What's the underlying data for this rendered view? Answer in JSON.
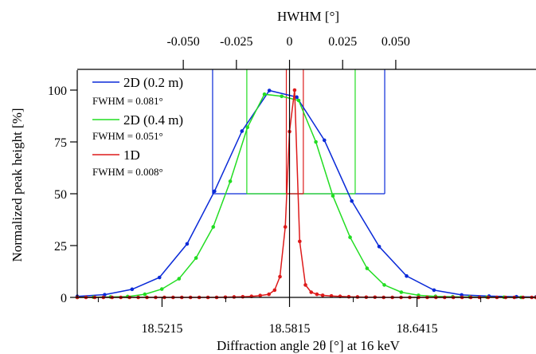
{
  "chart_data": {
    "type": "line",
    "xlabel": "Diffraction angle 2θ [°] at 16 keV",
    "ylabel": "Normalized peak height [%]",
    "top_axis_label": "HWHM [°]",
    "xlim": [
      18.4816,
      18.6975
    ],
    "ylim": [
      0,
      110
    ],
    "x_ticks": [
      18.5215,
      18.5815,
      18.6415
    ],
    "x_tick_labels": [
      "18.5215",
      "18.5815",
      "18.6415"
    ],
    "y_ticks": [
      0,
      25,
      50,
      75,
      100
    ],
    "y_tick_labels": [
      "0",
      "25",
      "50",
      "75",
      "100"
    ],
    "top_axis_center": 18.5815,
    "top_ticks": [
      -0.05,
      -0.025,
      0,
      0.025,
      0.05
    ],
    "top_tick_labels": [
      "-0.050",
      "-0.025",
      "0",
      "0.025",
      "0.050"
    ],
    "legend_position": "top-left",
    "series": [
      {
        "name": "2D (0.2 m)",
        "fwhm_label": "FWHM = 0.081°",
        "color": "#0a2ad8",
        "x": [
          18.4816,
          18.4945,
          18.5074,
          18.5203,
          18.5333,
          18.5462,
          18.5591,
          18.572,
          18.5849,
          18.5979,
          18.6108,
          18.6237,
          18.6366,
          18.6495,
          18.6625,
          18.6754,
          18.6883,
          18.6975
        ],
        "y": [
          0.5,
          1.3,
          3.9,
          9.6,
          25.8,
          51.2,
          80.2,
          99.8,
          96.6,
          75.8,
          46.5,
          24.5,
          10.3,
          3.5,
          1.2,
          0.6,
          0.3,
          0.2
        ]
      },
      {
        "name": "2D (0.4 m)",
        "fwhm_label": "FWHM = 0.051°",
        "color": "#22dd22",
        "x": [
          18.4816,
          18.4892,
          18.4973,
          18.5053,
          18.5134,
          18.5214,
          18.5295,
          18.5375,
          18.5456,
          18.5536,
          18.5617,
          18.5697,
          18.5778,
          18.5858,
          18.5939,
          18.6019,
          18.61,
          18.618,
          18.6261,
          18.6341,
          18.6422,
          18.6502,
          18.6583,
          18.6663,
          18.6744,
          18.6824,
          18.6905,
          18.6975
        ],
        "y": [
          0,
          0.1,
          0.2,
          0.4,
          1.5,
          4.0,
          9.0,
          19.0,
          34.0,
          56.0,
          82.0,
          98.0,
          97.0,
          95.0,
          75.0,
          49.0,
          29.0,
          14.0,
          6.0,
          2.5,
          1.0,
          0.5,
          0.3,
          0.2,
          0.1,
          0.1,
          0,
          0
        ]
      },
      {
        "name": "1D",
        "fwhm_label": "FWHM = 0.008°",
        "color": "#dd1a1a",
        "x": [
          18.4816,
          18.4857,
          18.4898,
          18.4939,
          18.498,
          18.5021,
          18.5062,
          18.5103,
          18.5144,
          18.5185,
          18.5226,
          18.5267,
          18.5308,
          18.5349,
          18.539,
          18.5431,
          18.5472,
          18.5513,
          18.5554,
          18.5595,
          18.5636,
          18.5677,
          18.5718,
          18.5745,
          18.577,
          18.5795,
          18.5815,
          18.5839,
          18.5863,
          18.589,
          18.5917,
          18.5944,
          18.5971,
          18.6012,
          18.6053,
          18.6094,
          18.6135,
          18.6176,
          18.6217,
          18.6258,
          18.6299,
          18.634,
          18.6381,
          18.6422,
          18.6463,
          18.6504,
          18.6545,
          18.6586,
          18.6627,
          18.6668,
          18.6709,
          18.675,
          18.6791,
          18.6832,
          18.6873,
          18.6914,
          18.6955,
          18.6975
        ],
        "y": [
          0,
          0,
          0,
          0,
          0,
          0,
          0,
          0,
          0,
          0,
          0,
          0,
          0,
          0,
          0,
          0,
          0,
          0.1,
          0.2,
          0.3,
          0.5,
          0.9,
          1.5,
          3.5,
          10.0,
          34.0,
          80.0,
          100.0,
          27.0,
          6.0,
          2.5,
          1.5,
          1.0,
          0.7,
          0.5,
          0.3,
          0.2,
          0.1,
          0.1,
          0,
          0,
          0,
          0,
          0,
          0,
          0,
          0,
          0,
          0,
          0,
          0,
          0,
          0,
          0,
          0,
          0,
          0,
          0
        ]
      }
    ],
    "fwhm_markers": [
      {
        "series": "2D (0.2 m)",
        "color": "#0a2ad8",
        "x_left": 18.5453,
        "x_right": 18.6263,
        "level": 50
      },
      {
        "series": "2D (0.4 m)",
        "color": "#22dd22",
        "x_left": 18.5614,
        "x_right": 18.6124,
        "level": 50
      },
      {
        "series": "1D",
        "color": "#dd1a1a",
        "x_left": 18.58,
        "x_right": 18.588,
        "level": 50
      }
    ],
    "center_line_x": 18.5815
  }
}
